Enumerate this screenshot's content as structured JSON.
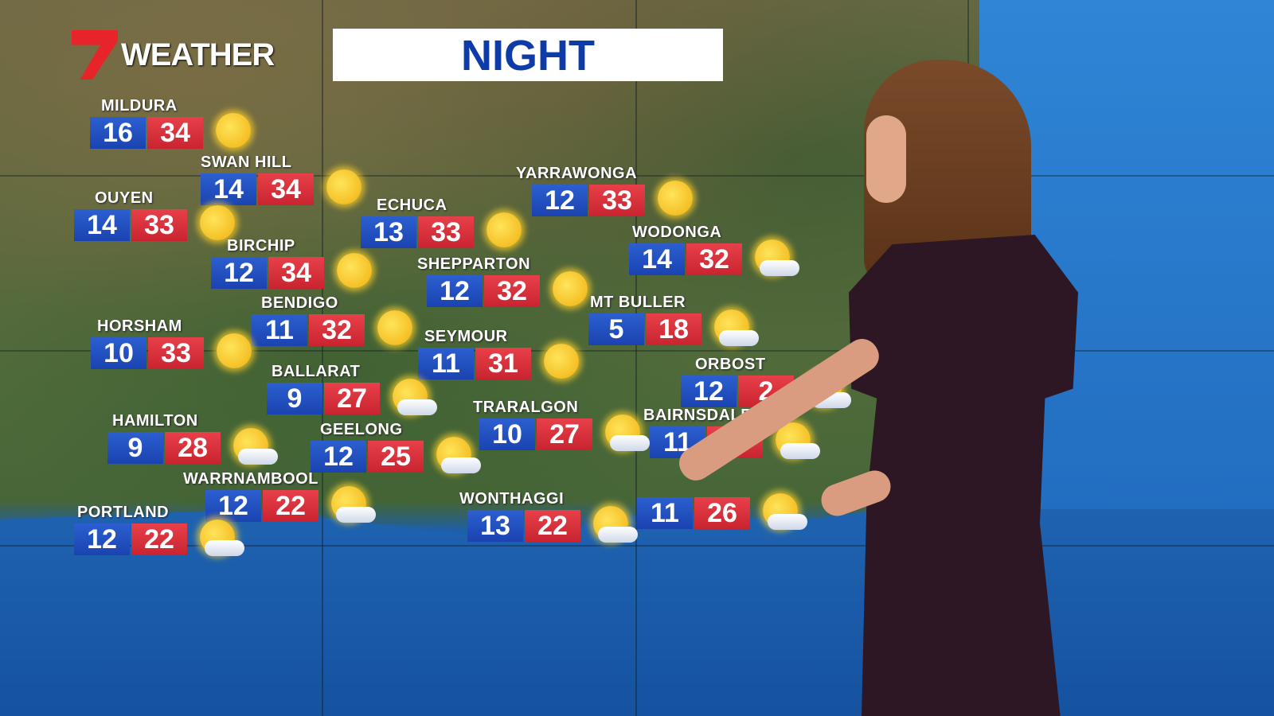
{
  "brand": {
    "logo_text": "WEATHER",
    "logo_colors": {
      "seven": "#e8242b"
    }
  },
  "title": "NIGHT",
  "colors": {
    "min_box": "#1a43b0",
    "max_box": "#c82430"
  },
  "cities": [
    {
      "name": "MILDURA",
      "min": "16",
      "max": "34",
      "icon": "sun"
    },
    {
      "name": "SWAN HILL",
      "min": "14",
      "max": "34",
      "icon": "sun"
    },
    {
      "name": "OUYEN",
      "min": "14",
      "max": "33",
      "icon": "sun"
    },
    {
      "name": "BIRCHIP",
      "min": "12",
      "max": "34",
      "icon": "sun"
    },
    {
      "name": "ECHUCA",
      "min": "13",
      "max": "33",
      "icon": "sun"
    },
    {
      "name": "YARRAWONGA",
      "min": "12",
      "max": "33",
      "icon": "sun"
    },
    {
      "name": "SHEPPARTON",
      "min": "12",
      "max": "32",
      "icon": "sun"
    },
    {
      "name": "WODONGA",
      "min": "14",
      "max": "32",
      "icon": "sun-cloud"
    },
    {
      "name": "BENDIGO",
      "min": "11",
      "max": "32",
      "icon": "sun"
    },
    {
      "name": "MT BULLER",
      "min": "5",
      "max": "18",
      "icon": "sun-cloud"
    },
    {
      "name": "HORSHAM",
      "min": "10",
      "max": "33",
      "icon": "sun"
    },
    {
      "name": "SEYMOUR",
      "min": "11",
      "max": "31",
      "icon": "sun"
    },
    {
      "name": "BALLARAT",
      "min": "9",
      "max": "27",
      "icon": "sun-cloud"
    },
    {
      "name": "ORBOST",
      "min": "12",
      "max": "2",
      "icon": "sun-cloud"
    },
    {
      "name": "TRARALGON",
      "min": "10",
      "max": "27",
      "icon": "sun-cloud"
    },
    {
      "name": "BAIRNSDALE",
      "min": "11",
      "max": "",
      "icon": "sun-cloud"
    },
    {
      "name": "HAMILTON",
      "min": "9",
      "max": "28",
      "icon": "sun-cloud"
    },
    {
      "name": "GEELONG",
      "min": "12",
      "max": "25",
      "icon": "sun-cloud"
    },
    {
      "name": "WARRNAMBOOL",
      "min": "12",
      "max": "22",
      "icon": "sun-cloud"
    },
    {
      "name": "WONTHAGGI",
      "min": "13",
      "max": "22",
      "icon": "sun-cloud"
    },
    {
      "name": "PORTLAND",
      "min": "12",
      "max": "22",
      "icon": "sun-cloud"
    },
    {
      "name": "",
      "min": "11",
      "max": "26",
      "icon": "sun-cloud"
    }
  ]
}
